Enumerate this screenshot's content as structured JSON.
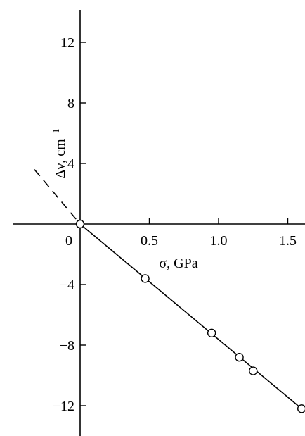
{
  "chart_data": {
    "type": "scatter",
    "title": "",
    "xlabel": "σ, GPa",
    "ylabel_main": "Δν, cm",
    "ylabel_sup": "−1",
    "xlim": [
      -0.35,
      1.63
    ],
    "ylim": [
      -14,
      14
    ],
    "x_ticks": [
      0.5,
      1.0,
      1.5
    ],
    "x_tick_labels": [
      "0.5",
      "1.0",
      "1.5"
    ],
    "y_ticks": [
      12,
      8,
      4,
      -4,
      -8,
      -12
    ],
    "y_tick_labels": [
      "12",
      "8",
      "4",
      "−4",
      "−8",
      "−12"
    ],
    "origin_label": "0",
    "grid": false,
    "series": [
      {
        "marker": "open-circle",
        "x": [
          0,
          0.47,
          0.95,
          1.15,
          1.25,
          1.6
        ],
        "y": [
          0,
          -3.6,
          -7.2,
          -8.8,
          -9.7,
          -12.2
        ]
      }
    ],
    "fit_line": {
      "from": [
        0,
        0
      ],
      "to": [
        1.6,
        -12.2
      ],
      "style": "solid"
    },
    "extrapolation": {
      "from": [
        -0.33,
        3.6
      ],
      "to": [
        0,
        0
      ],
      "style": "dashed"
    }
  }
}
